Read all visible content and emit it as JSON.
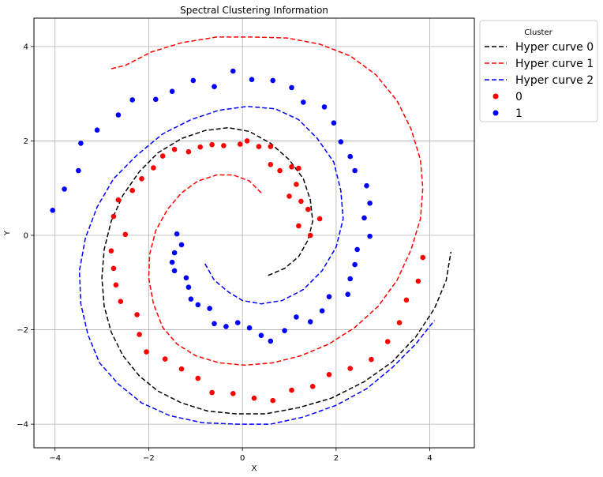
{
  "chart_data": {
    "type": "scatter",
    "title": "Spectral Clustering Information",
    "xlabel": "X",
    "ylabel": "Y",
    "xlim": [
      -4.45,
      4.95
    ],
    "ylim": [
      -4.5,
      4.6
    ],
    "xticks": [
      -4,
      -2,
      0,
      2,
      4
    ],
    "yticks": [
      -4,
      -2,
      0,
      2,
      4
    ],
    "xtick_labels": [
      "−4",
      "−2",
      "0",
      "2",
      "4"
    ],
    "ytick_labels": [
      "−4",
      "−2",
      "0",
      "2",
      "4"
    ],
    "grid": true,
    "legend": {
      "title": "Cluster",
      "placement": "outside-upper-right"
    },
    "series": [
      {
        "name": "Hyper curve 0",
        "kind": "dashed-line",
        "color": "#000000",
        "x": [
          0.55,
          0.9,
          1.2,
          1.4,
          1.5,
          1.45,
          1.3,
          1.0,
          0.6,
          0.15,
          -0.3,
          -0.8,
          -1.3,
          -1.8,
          -2.2,
          -2.55,
          -2.8,
          -2.95,
          -3.0,
          -2.95,
          -2.8,
          -2.55,
          -2.2,
          -1.8,
          -1.3,
          -0.75,
          -0.15,
          0.5,
          1.2,
          1.9,
          2.6,
          3.2,
          3.7,
          4.1,
          4.35,
          4.45
        ],
        "y": [
          -0.85,
          -0.7,
          -0.45,
          -0.1,
          0.3,
          0.75,
          1.2,
          1.6,
          1.95,
          2.2,
          2.28,
          2.22,
          2.05,
          1.75,
          1.35,
          0.85,
          0.3,
          -0.3,
          -0.9,
          -1.5,
          -2.05,
          -2.55,
          -2.98,
          -3.3,
          -3.55,
          -3.72,
          -3.78,
          -3.78,
          -3.65,
          -3.45,
          -3.1,
          -2.68,
          -2.15,
          -1.55,
          -0.95,
          -0.35
        ]
      },
      {
        "name": "Hyper curve 1",
        "kind": "dashed-line",
        "color": "#ff0000",
        "x": [
          0.4,
          0.15,
          -0.2,
          -0.55,
          -0.95,
          -1.3,
          -1.6,
          -1.85,
          -1.98,
          -2.0,
          -1.9,
          -1.7,
          -1.4,
          -1.0,
          -0.5,
          0.05,
          0.65,
          1.25,
          1.85,
          2.4,
          2.9,
          3.3,
          3.6,
          3.8,
          3.85,
          3.8,
          3.6,
          3.3,
          2.85,
          2.3,
          1.65,
          0.95,
          0.2,
          -0.55,
          -1.3,
          -1.95,
          -2.5,
          -2.8
        ],
        "y": [
          0.9,
          1.15,
          1.28,
          1.28,
          1.15,
          0.9,
          0.55,
          0.1,
          -0.4,
          -0.9,
          -1.45,
          -1.95,
          -2.3,
          -2.55,
          -2.7,
          -2.75,
          -2.7,
          -2.55,
          -2.3,
          -1.95,
          -1.5,
          -0.95,
          -0.3,
          0.35,
          1.0,
          1.6,
          2.25,
          2.85,
          3.4,
          3.8,
          4.05,
          4.18,
          4.2,
          4.2,
          4.08,
          3.88,
          3.6,
          3.53
        ]
      },
      {
        "name": "Hyper curve 2",
        "kind": "dashed-line",
        "color": "#0000ff",
        "x": [
          -0.8,
          -0.6,
          -0.3,
          0.0,
          0.4,
          0.85,
          1.3,
          1.7,
          2.0,
          2.15,
          2.1,
          1.95,
          1.6,
          1.2,
          0.7,
          0.1,
          -0.5,
          -1.1,
          -1.7,
          -2.25,
          -2.75,
          -3.1,
          -3.35,
          -3.48,
          -3.45,
          -3.3,
          -3.05,
          -2.65,
          -2.15,
          -1.55,
          -0.85,
          -0.1,
          0.6,
          1.3,
          2.0,
          2.65,
          3.2,
          3.7,
          4.1
        ],
        "y": [
          -0.6,
          -0.95,
          -1.2,
          -1.38,
          -1.45,
          -1.38,
          -1.15,
          -0.75,
          -0.25,
          0.35,
          0.95,
          1.55,
          2.05,
          2.45,
          2.68,
          2.73,
          2.65,
          2.45,
          2.15,
          1.7,
          1.2,
          0.6,
          -0.05,
          -0.75,
          -1.45,
          -2.1,
          -2.7,
          -3.15,
          -3.55,
          -3.82,
          -3.97,
          -4.0,
          -4.0,
          -3.85,
          -3.6,
          -3.25,
          -2.8,
          -2.3,
          -1.8
        ]
      },
      {
        "name": "0",
        "kind": "points",
        "color": "#ff0000",
        "x": [
          0.1,
          0.35,
          0.6,
          0.8,
          1.05,
          1.2,
          1.0,
          1.15,
          1.25,
          1.4,
          1.65,
          1.45,
          1.2,
          0.6,
          -0.05,
          -0.4,
          -0.65,
          -0.9,
          -1.15,
          -1.45,
          -1.7,
          -1.9,
          -2.15,
          -2.35,
          -2.65,
          -2.75,
          -2.8,
          -2.75,
          -2.7,
          -2.6,
          -2.5,
          -2.25,
          -2.2,
          -2.05,
          -1.65,
          -1.3,
          -0.95,
          -0.65,
          -0.2,
          0.25,
          0.65,
          1.05,
          1.5,
          1.85,
          2.3,
          2.75,
          3.1,
          3.35,
          3.5,
          3.75,
          3.85
        ],
        "y": [
          2.0,
          1.88,
          1.88,
          1.37,
          1.45,
          1.42,
          0.83,
          1.08,
          0.72,
          0.55,
          0.35,
          0.0,
          0.2,
          1.5,
          1.93,
          1.9,
          1.92,
          1.87,
          1.77,
          1.82,
          1.68,
          1.43,
          1.2,
          0.95,
          0.75,
          0.4,
          -0.33,
          -0.7,
          -1.05,
          -1.4,
          0.02,
          -1.68,
          -2.1,
          -2.47,
          -2.62,
          -2.83,
          -3.03,
          -3.33,
          -3.35,
          -3.45,
          -3.5,
          -3.28,
          -3.2,
          -2.95,
          -2.82,
          -2.63,
          -2.25,
          -1.85,
          -1.37,
          -0.97,
          -0.47
        ]
      },
      {
        "name": "1",
        "kind": "points",
        "color": "#0000ff",
        "x": [
          -1.4,
          -1.3,
          -1.45,
          -1.5,
          -1.45,
          -1.2,
          -1.15,
          -1.1,
          -0.95,
          -0.7,
          -0.6,
          -0.35,
          -0.1,
          0.15,
          0.4,
          0.6,
          0.9,
          1.15,
          1.45,
          1.7,
          1.85,
          2.25,
          2.3,
          2.4,
          2.45,
          2.6,
          2.65,
          2.72,
          2.72,
          2.4,
          2.3,
          2.1,
          1.95,
          1.75,
          1.3,
          1.05,
          0.65,
          0.2,
          -0.2,
          -0.6,
          -1.05,
          -1.5,
          -1.85,
          -2.35,
          -2.65,
          -3.1,
          -3.45,
          -3.5,
          -3.8,
          -4.05
        ],
        "y": [
          0.03,
          -0.2,
          -0.37,
          -0.57,
          -0.75,
          -0.9,
          -1.1,
          -1.35,
          -1.47,
          -1.55,
          -1.87,
          -1.93,
          -1.85,
          -1.96,
          -2.12,
          -2.24,
          -2.02,
          -1.73,
          -1.83,
          -1.6,
          -1.3,
          -1.25,
          -0.92,
          -0.62,
          -0.3,
          0.37,
          1.05,
          0.68,
          -0.02,
          1.37,
          1.67,
          1.98,
          2.38,
          2.72,
          2.82,
          3.13,
          3.28,
          3.3,
          3.48,
          3.15,
          3.28,
          3.05,
          2.88,
          2.87,
          2.55,
          2.23,
          1.95,
          1.37,
          0.98,
          0.53
        ]
      }
    ]
  }
}
